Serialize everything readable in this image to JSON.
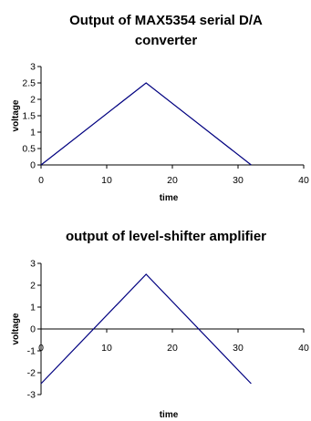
{
  "chart_data": [
    {
      "type": "line",
      "title_lines": [
        "Output of MAX5354 serial D/A",
        "converter"
      ],
      "xlabel": "time",
      "ylabel": "voltage",
      "xlim": [
        0,
        40
      ],
      "ylim": [
        0,
        3
      ],
      "xticks": [
        0,
        10,
        20,
        30,
        40
      ],
      "yticks": [
        0,
        0.5,
        1,
        1.5,
        2,
        2.5,
        3
      ],
      "ytick_labels": [
        "0",
        "0.5",
        "1",
        "1.5",
        "2",
        "2.5",
        "3"
      ],
      "grid": false,
      "series": [
        {
          "color": "#000080",
          "x": [
            0,
            16,
            32
          ],
          "y": [
            0,
            2.5,
            0
          ]
        }
      ]
    },
    {
      "type": "line",
      "title_lines": [
        "output of level-shifter amplifier"
      ],
      "xlabel": "time",
      "ylabel": "voltage",
      "xlim": [
        0,
        40
      ],
      "ylim": [
        -3,
        3
      ],
      "xticks": [
        0,
        10,
        20,
        30,
        40
      ],
      "yticks": [
        -3,
        -2,
        -1,
        0,
        1,
        2,
        3
      ],
      "ytick_labels": [
        "-3",
        "-2",
        "-1",
        "0",
        "1",
        "2",
        "3"
      ],
      "grid": false,
      "series": [
        {
          "color": "#000080",
          "x": [
            0,
            16,
            32
          ],
          "y": [
            -2.5,
            2.5,
            -2.5
          ]
        }
      ]
    }
  ]
}
